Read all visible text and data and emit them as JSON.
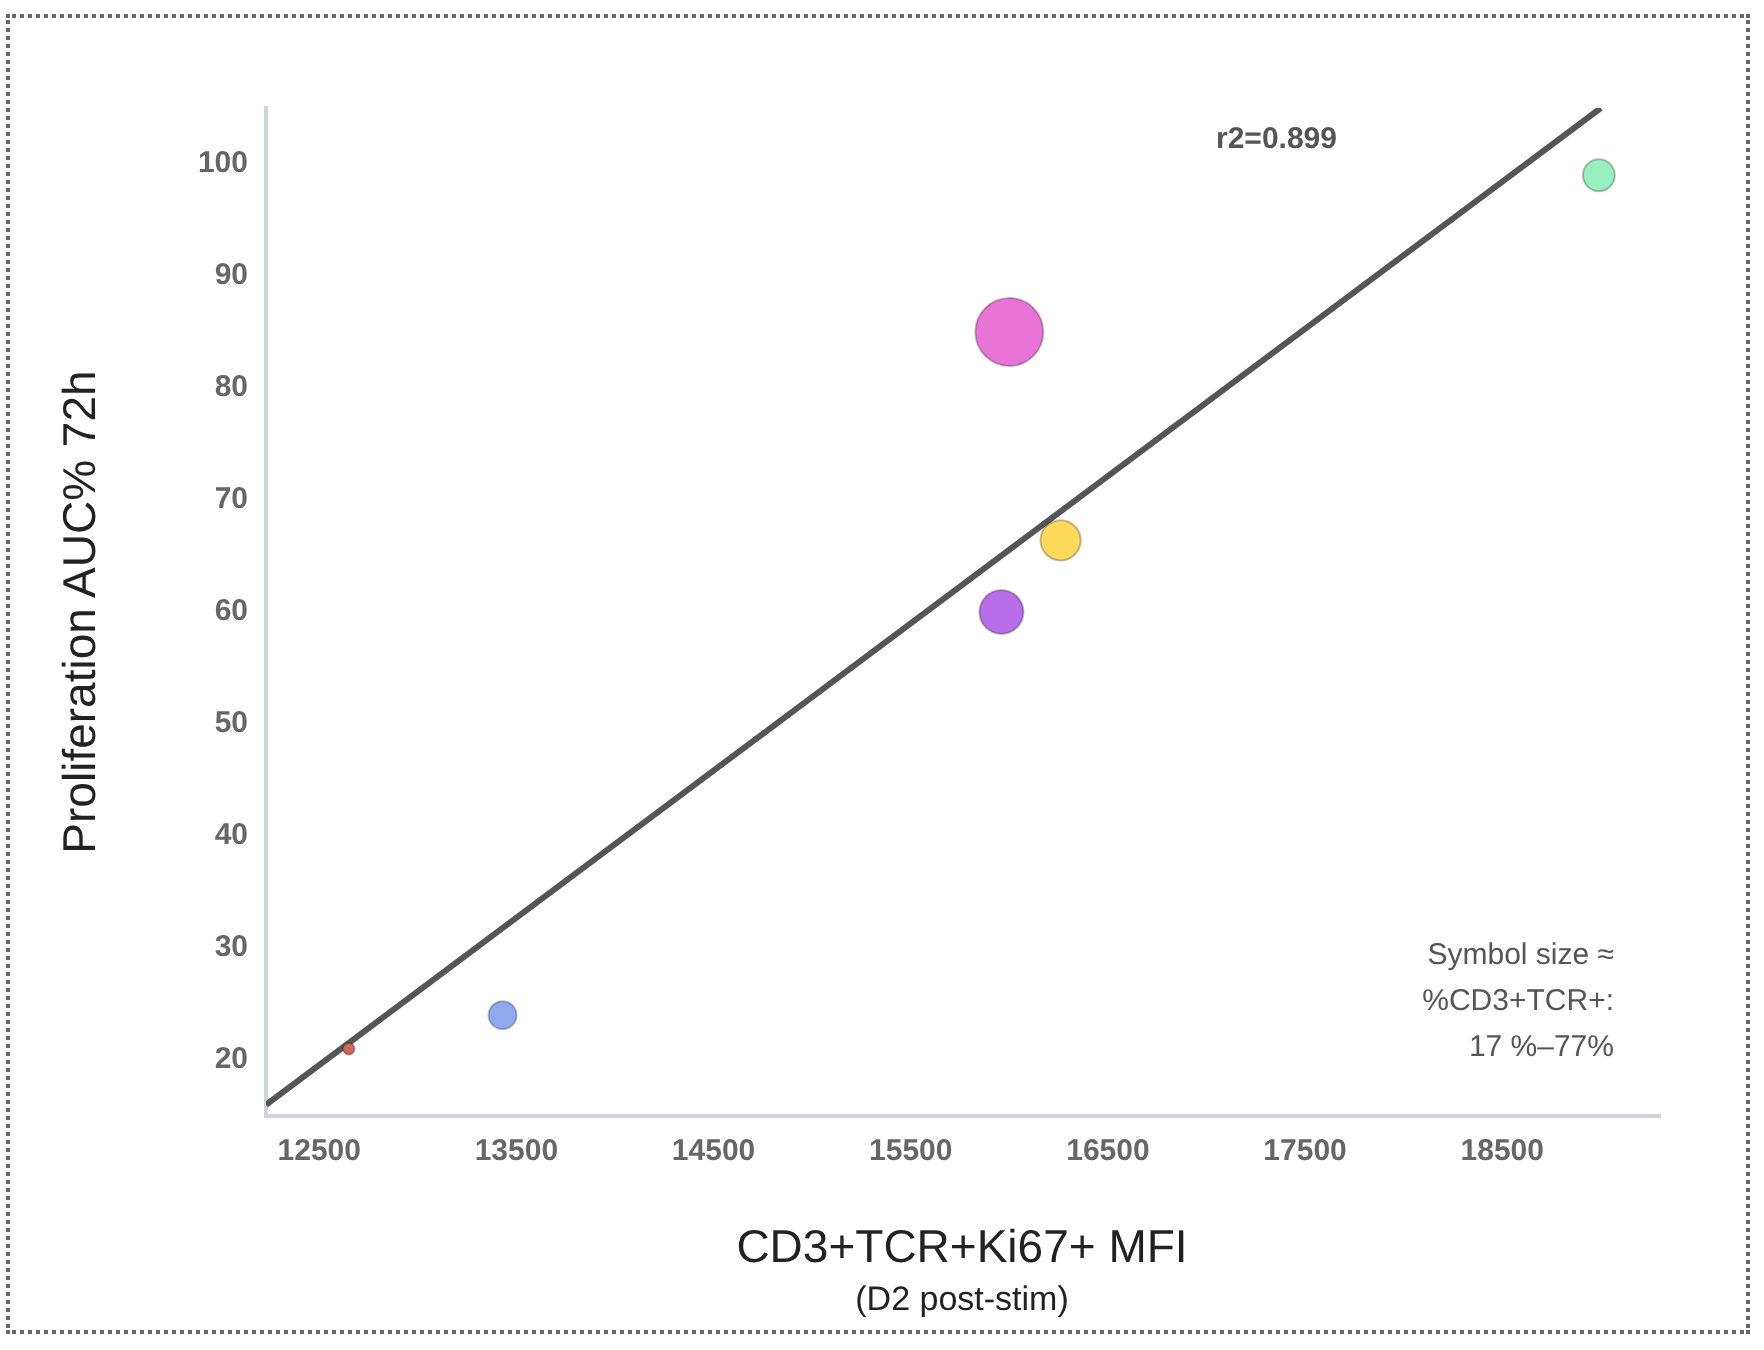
{
  "chart_data": {
    "type": "bubble",
    "xlabel": "CD3+TCR+Ki67+ MFI",
    "ylabel": "Proliferation AUC% 72h",
    "annotations": [
      "r2=0.899",
      "Symbol size ≈\n%CD3+TCR+:\n17 %–77%",
      "(D2 post-stim)"
    ],
    "xlim": [
      12230,
      19300
    ],
    "ylim": [
      15,
      105
    ],
    "xticks": [
      12500,
      13500,
      14500,
      15500,
      16500,
      17500,
      18500
    ],
    "yticks": [
      20,
      30,
      40,
      50,
      60,
      70,
      80,
      90,
      100
    ],
    "grid": false,
    "legend": false,
    "series": [
      {
        "x": [
          12650,
          13430,
          15960,
          16000,
          16260,
          18990
        ],
        "values": [
          21,
          24,
          60,
          85,
          66.4,
          99
        ],
        "sizes": [
          0.03,
          0.17,
          0.42,
          1,
          0.35,
          0.22
        ],
        "colors": [
          "#d0685a",
          "#8faaf0",
          "#b86ee8",
          "#e874d8",
          "#fcd95a",
          "#98f0c0"
        ]
      },
      {
        "type": "line",
        "color": "#555555",
        "x": [
          12230,
          19000
        ],
        "values": [
          16,
          105
        ]
      }
    ]
  }
}
